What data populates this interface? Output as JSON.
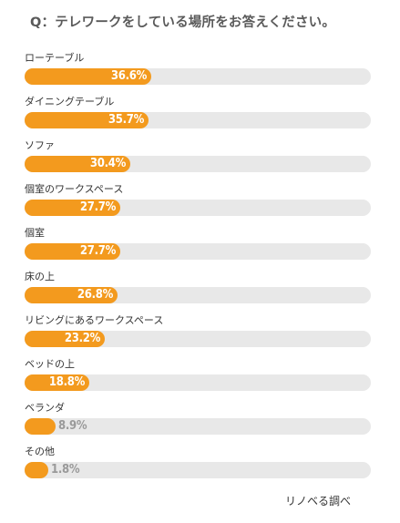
{
  "question": "Q：テレワークをしている場所をお答えください。",
  "source": "リノベる調べ",
  "colors": {
    "bar": "#f39a1e",
    "track": "#e8e8e8",
    "label_text": "#333333",
    "value_inside": "#ffffff",
    "value_outside": "#9a9a9a"
  },
  "chart_data": {
    "type": "bar",
    "orientation": "horizontal",
    "xlim": [
      0,
      100
    ],
    "categories": [
      "ローテーブル",
      "ダイニングテーブル",
      "ソファ",
      "個室のワークスペース",
      "個室",
      "床の上",
      "リビングにあるワークスペース",
      "ベッドの上",
      "ベランダ",
      "その他"
    ],
    "values": [
      36.6,
      35.7,
      30.4,
      27.7,
      27.7,
      26.8,
      23.2,
      18.8,
      8.9,
      1.8
    ],
    "value_labels": [
      "36.6%",
      "35.7%",
      "30.4%",
      "27.7%",
      "27.7%",
      "26.8%",
      "23.2%",
      "18.8%",
      "8.9%",
      "1.8%"
    ]
  }
}
